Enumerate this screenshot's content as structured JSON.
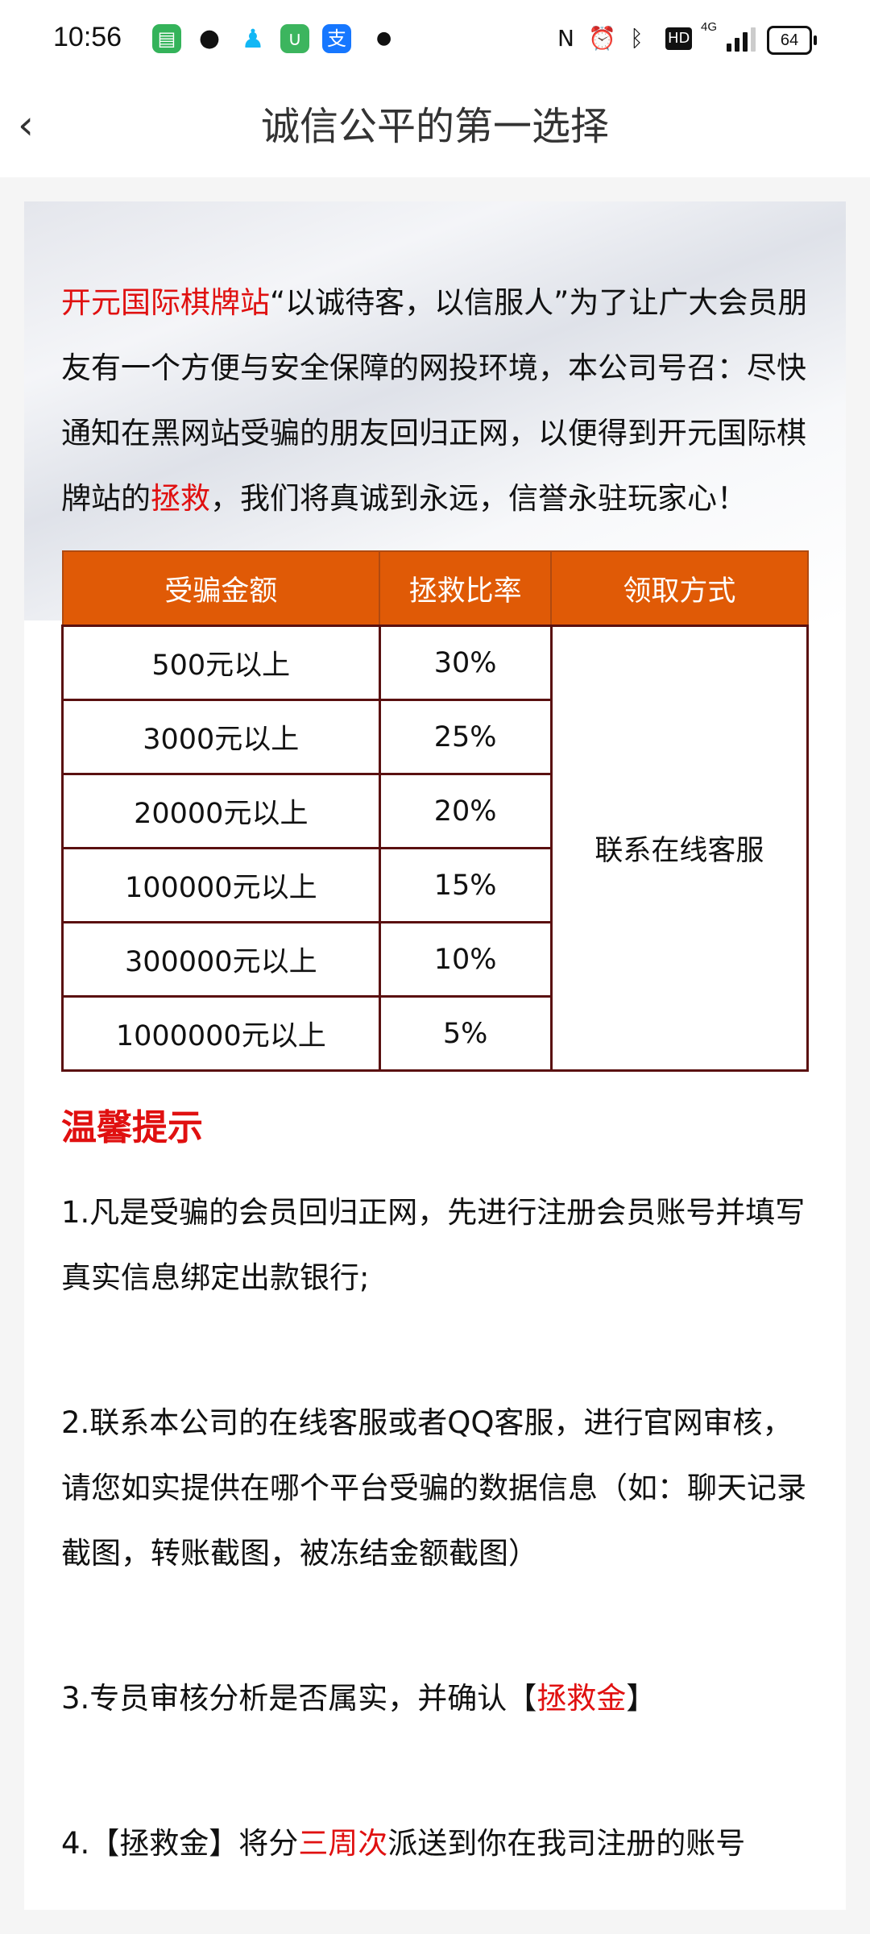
{
  "status_bar": {
    "time": "10:56",
    "battery": "64",
    "network": "4G",
    "hd": "HD",
    "app_icons": [
      "messages-icon",
      "wechat-icon",
      "qq-icon",
      "app-store-icon",
      "alipay-icon"
    ]
  },
  "header": {
    "title": "诚信公平的第一选择",
    "back_icon": "chevron-left-icon"
  },
  "intro": {
    "segments": [
      {
        "text": "开元国际棋牌站",
        "red": true
      },
      {
        "text": "“以诚待客，以信服人”为了让广大会员朋友有一个方便与安全保障的网投环境，本公司号召：尽快通知在黑网站受骗的朋友回归正网，以便得到开元国际棋牌站的",
        "red": false
      },
      {
        "text": "拯救",
        "red": true
      },
      {
        "text": "，我们将真诚到永远，信誉永驻玩家心！",
        "red": false
      }
    ]
  },
  "table": {
    "headers": [
      "受骗金额",
      "拯救比率",
      "领取方式"
    ],
    "rows": [
      {
        "amount": "500元以上",
        "rate": "30%"
      },
      {
        "amount": "3000元以上",
        "rate": "25%"
      },
      {
        "amount": "20000元以上",
        "rate": "20%"
      },
      {
        "amount": "100000元以上",
        "rate": "15%"
      },
      {
        "amount": "300000元以上",
        "rate": "10%"
      },
      {
        "amount": "1000000元以上",
        "rate": "5%"
      }
    ],
    "method": "联系在线客服"
  },
  "tips": {
    "title": "温馨提示",
    "item1": "1.凡是受骗的会员回归正网，先进行注册会员账号并填写真实信息绑定出款银行;",
    "item2": "2.联系本公司的在线客服或者QQ客服，进行官网审核，请您如实提供在哪个平台受骗的数据信息（如：聊天记录截图，转账截图，被冻结金额截图）",
    "item3": {
      "a": "3.专员审核分析是否属实，并确认【",
      "b": "拯救金",
      "c": "】"
    },
    "item4": {
      "a": "4.【拯救金】将分",
      "b": "三周次",
      "c": "派送到你在我司注册的账号"
    }
  },
  "colors": {
    "accent_red": "#e01010",
    "table_header": "#e05a06",
    "table_border": "#5a1010"
  }
}
